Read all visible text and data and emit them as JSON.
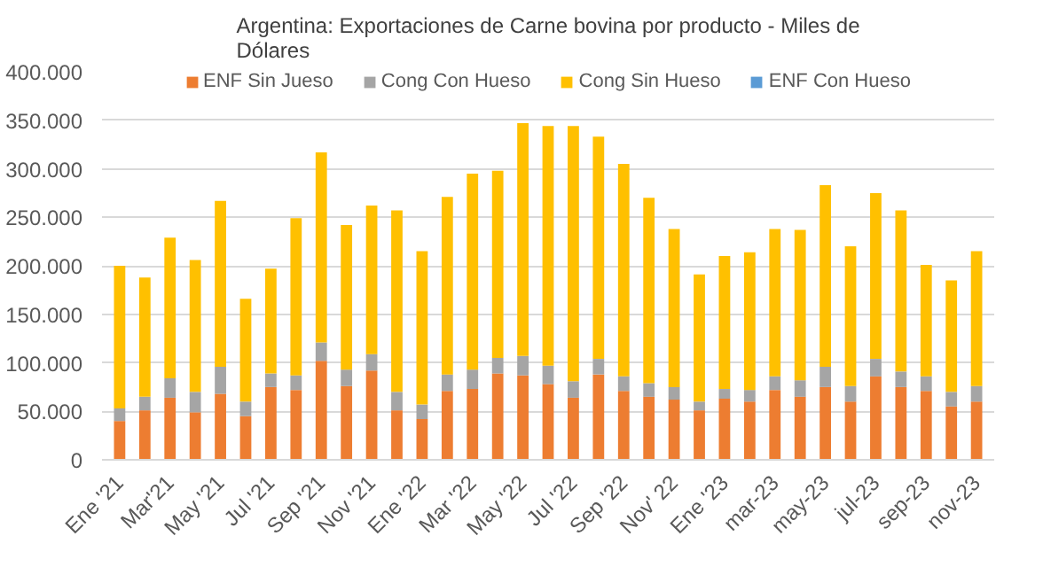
{
  "chart_data": {
    "type": "bar",
    "stacked": true,
    "title": "Argentina: Exportaciones de Carne bovina por producto - Miles de Dólares",
    "categories": [
      "Ene '21",
      null,
      "Mar'21",
      null,
      "May '21",
      null,
      "Jul '21",
      null,
      "Sep '21",
      null,
      "Nov '21",
      null,
      "Ene '22",
      null,
      "Mar '22",
      null,
      "May '22",
      null,
      "Jul '22",
      null,
      "Sep '22",
      null,
      "Nov' 22",
      null,
      "Ene '23",
      null,
      "mar-23",
      null,
      "may-23",
      null,
      "jul-23",
      null,
      "sep-23",
      null,
      "nov-23"
    ],
    "series": [
      {
        "name": "ENF Sin Jueso",
        "color": "#ed7d31",
        "values": [
          40000,
          51000,
          64000,
          49000,
          68000,
          45000,
          75000,
          72000,
          102000,
          76000,
          92000,
          51000,
          42000,
          71000,
          73000,
          89000,
          87000,
          78000,
          64000,
          88000,
          71000,
          65000,
          62000,
          51000,
          63000,
          60000,
          72000,
          65000,
          75000,
          60000,
          86000,
          75000,
          71000,
          55000,
          60000
        ]
      },
      {
        "name": "Cong Con Hueso",
        "color": "#a5a5a5",
        "values": [
          13000,
          14000,
          20000,
          21000,
          28000,
          15000,
          14000,
          15000,
          19000,
          17000,
          17000,
          19000,
          15000,
          17000,
          20000,
          16000,
          20000,
          19000,
          17000,
          16000,
          15000,
          14000,
          13000,
          9000,
          10000,
          12000,
          14000,
          17000,
          21000,
          16000,
          18000,
          16000,
          15000,
          15000,
          16000
        ]
      },
      {
        "name": "Cong Sin Hueso",
        "color": "#ffc000",
        "values": [
          147000,
          123000,
          145000,
          136000,
          171000,
          106000,
          108000,
          162000,
          196000,
          149000,
          153000,
          187000,
          158000,
          183000,
          202000,
          193000,
          240000,
          247000,
          263000,
          229000,
          219000,
          191000,
          163000,
          131000,
          137000,
          142000,
          152000,
          155000,
          187000,
          144000,
          171000,
          166000,
          115000,
          115000,
          139000
        ]
      },
      {
        "name": "ENF Con Hueso",
        "color": "#5b9bd5",
        "values": [
          0,
          0,
          0,
          0,
          0,
          0,
          0,
          0,
          0,
          0,
          0,
          0,
          0,
          0,
          0,
          0,
          0,
          0,
          0,
          0,
          0,
          0,
          0,
          0,
          0,
          0,
          0,
          0,
          0,
          0,
          0,
          0,
          0,
          0,
          0
        ]
      }
    ],
    "ylim": [
      0,
      400000
    ],
    "yticks": [
      0,
      {
        "value": 50000,
        "label": "50.000"
      },
      {
        "value": 100000,
        "label": "100.000"
      },
      {
        "value": 150000,
        "label": "150.000"
      },
      {
        "value": 200000,
        "label": "200.000"
      },
      {
        "value": 250000,
        "label": "250.000"
      },
      {
        "value": 300000,
        "label": "300.000"
      },
      {
        "value": 350000,
        "label": "350.000"
      },
      {
        "value": 400000,
        "label": "400.000"
      }
    ],
    "grid": "y",
    "legend": "top"
  }
}
